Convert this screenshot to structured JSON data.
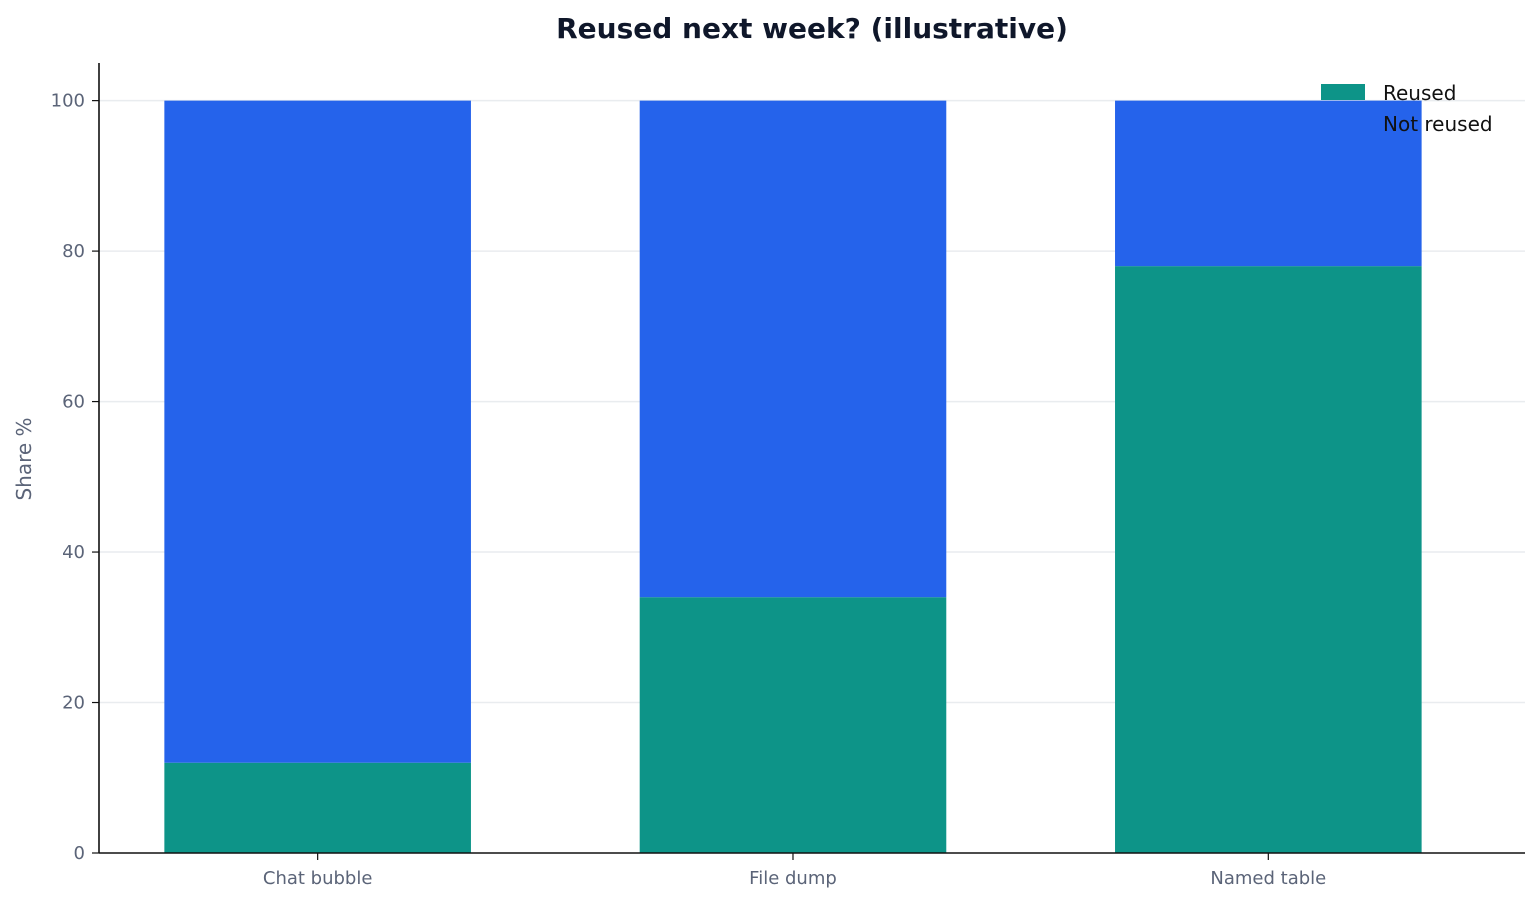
{
  "chart_data": {
    "type": "bar",
    "stacked": true,
    "title": "Reused next week? (illustrative)",
    "xlabel": "",
    "ylabel": "Share %",
    "categories": [
      "Chat bubble",
      "File dump",
      "Named table"
    ],
    "series": [
      {
        "name": "Reused",
        "values": [
          12,
          34,
          78
        ],
        "color": "#0d9488"
      },
      {
        "name": "Not reused",
        "values": [
          88,
          66,
          22
        ],
        "color": "#2563eb"
      }
    ],
    "ylim": [
      0,
      105
    ],
    "yticks": [
      0,
      20,
      40,
      60,
      80,
      100
    ],
    "grid": "horizontal",
    "legend_position": "top-right"
  }
}
